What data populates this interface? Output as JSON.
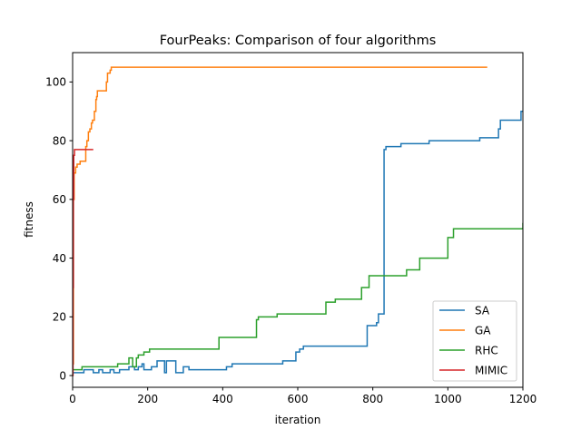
{
  "chart_data": {
    "type": "line",
    "title": "FourPeaks: Comparison of four algorithms",
    "xlabel": "iteration",
    "ylabel": "fitness",
    "xlim": [
      0,
      1200
    ],
    "ylim": [
      -4,
      110
    ],
    "xticks": [
      0,
      200,
      400,
      600,
      800,
      1000,
      1200
    ],
    "yticks": [
      0,
      20,
      40,
      60,
      80,
      100
    ],
    "grid": false,
    "legend_position": "lower-right",
    "series": [
      {
        "name": "SA",
        "color": "#1f77b4",
        "steps": [
          [
            0,
            1
          ],
          [
            30,
            1
          ],
          [
            30,
            2
          ],
          [
            55,
            2
          ],
          [
            55,
            1
          ],
          [
            70,
            1
          ],
          [
            70,
            2
          ],
          [
            80,
            2
          ],
          [
            80,
            1
          ],
          [
            100,
            1
          ],
          [
            100,
            2
          ],
          [
            110,
            2
          ],
          [
            110,
            1
          ],
          [
            125,
            1
          ],
          [
            125,
            2
          ],
          [
            150,
            2
          ],
          [
            150,
            3
          ],
          [
            165,
            3
          ],
          [
            165,
            2
          ],
          [
            175,
            2
          ],
          [
            175,
            3
          ],
          [
            185,
            3
          ],
          [
            185,
            4
          ],
          [
            190,
            4
          ],
          [
            190,
            2
          ],
          [
            210,
            2
          ],
          [
            210,
            3
          ],
          [
            225,
            3
          ],
          [
            225,
            5
          ],
          [
            245,
            5
          ],
          [
            245,
            1
          ],
          [
            250,
            1
          ],
          [
            250,
            5
          ],
          [
            275,
            5
          ],
          [
            275,
            1
          ],
          [
            295,
            1
          ],
          [
            295,
            3
          ],
          [
            310,
            3
          ],
          [
            310,
            2
          ],
          [
            410,
            2
          ],
          [
            410,
            3
          ],
          [
            425,
            3
          ],
          [
            425,
            4
          ],
          [
            560,
            4
          ],
          [
            560,
            5
          ],
          [
            595,
            5
          ],
          [
            595,
            8
          ],
          [
            605,
            8
          ],
          [
            605,
            9
          ],
          [
            615,
            9
          ],
          [
            615,
            10
          ],
          [
            785,
            10
          ],
          [
            785,
            17
          ],
          [
            810,
            17
          ],
          [
            810,
            18
          ],
          [
            815,
            18
          ],
          [
            815,
            21
          ],
          [
            830,
            21
          ],
          [
            830,
            77
          ],
          [
            835,
            77
          ],
          [
            835,
            78
          ],
          [
            875,
            78
          ],
          [
            875,
            79
          ],
          [
            950,
            79
          ],
          [
            950,
            80
          ],
          [
            1085,
            80
          ],
          [
            1085,
            81
          ],
          [
            1135,
            81
          ],
          [
            1135,
            84
          ],
          [
            1140,
            84
          ],
          [
            1140,
            87
          ],
          [
            1195,
            87
          ],
          [
            1195,
            90
          ],
          [
            1200,
            90
          ]
        ]
      },
      {
        "name": "GA",
        "color": "#ff7f0e",
        "steps": [
          [
            0,
            4
          ],
          [
            2,
            4
          ],
          [
            2,
            60
          ],
          [
            4,
            60
          ],
          [
            4,
            69
          ],
          [
            8,
            69
          ],
          [
            8,
            71
          ],
          [
            12,
            71
          ],
          [
            12,
            72
          ],
          [
            20,
            72
          ],
          [
            20,
            73
          ],
          [
            35,
            73
          ],
          [
            35,
            78
          ],
          [
            38,
            78
          ],
          [
            38,
            80
          ],
          [
            42,
            80
          ],
          [
            42,
            83
          ],
          [
            46,
            83
          ],
          [
            46,
            84
          ],
          [
            50,
            84
          ],
          [
            50,
            86
          ],
          [
            53,
            86
          ],
          [
            53,
            87
          ],
          [
            58,
            87
          ],
          [
            58,
            90
          ],
          [
            62,
            90
          ],
          [
            62,
            94
          ],
          [
            64,
            94
          ],
          [
            64,
            95
          ],
          [
            66,
            95
          ],
          [
            66,
            97
          ],
          [
            90,
            97
          ],
          [
            90,
            100
          ],
          [
            93,
            100
          ],
          [
            93,
            103
          ],
          [
            100,
            103
          ],
          [
            100,
            104
          ],
          [
            103,
            104
          ],
          [
            103,
            105
          ],
          [
            1105,
            105
          ]
        ]
      },
      {
        "name": "RHC",
        "color": "#2ca02c",
        "steps": [
          [
            0,
            2
          ],
          [
            25,
            2
          ],
          [
            25,
            3
          ],
          [
            120,
            3
          ],
          [
            120,
            4
          ],
          [
            150,
            4
          ],
          [
            150,
            6
          ],
          [
            160,
            6
          ],
          [
            160,
            3
          ],
          [
            170,
            3
          ],
          [
            170,
            6
          ],
          [
            175,
            6
          ],
          [
            175,
            7
          ],
          [
            190,
            7
          ],
          [
            190,
            8
          ],
          [
            205,
            8
          ],
          [
            205,
            9
          ],
          [
            390,
            9
          ],
          [
            390,
            13
          ],
          [
            490,
            13
          ],
          [
            490,
            19
          ],
          [
            495,
            19
          ],
          [
            495,
            20
          ],
          [
            545,
            20
          ],
          [
            545,
            21
          ],
          [
            675,
            21
          ],
          [
            675,
            25
          ],
          [
            700,
            25
          ],
          [
            700,
            26
          ],
          [
            770,
            26
          ],
          [
            770,
            30
          ],
          [
            790,
            30
          ],
          [
            790,
            34
          ],
          [
            890,
            34
          ],
          [
            890,
            36
          ],
          [
            925,
            36
          ],
          [
            925,
            40
          ],
          [
            1000,
            40
          ],
          [
            1000,
            47
          ],
          [
            1015,
            47
          ],
          [
            1015,
            50
          ],
          [
            1200,
            50
          ],
          [
            1200,
            52
          ]
        ]
      },
      {
        "name": "MIMIC",
        "color": "#d62728",
        "steps": [
          [
            0,
            0
          ],
          [
            1,
            0
          ],
          [
            1,
            30
          ],
          [
            2,
            30
          ],
          [
            2,
            60
          ],
          [
            3,
            60
          ],
          [
            3,
            75
          ],
          [
            5,
            75
          ],
          [
            5,
            77
          ],
          [
            55,
            77
          ]
        ]
      }
    ]
  }
}
